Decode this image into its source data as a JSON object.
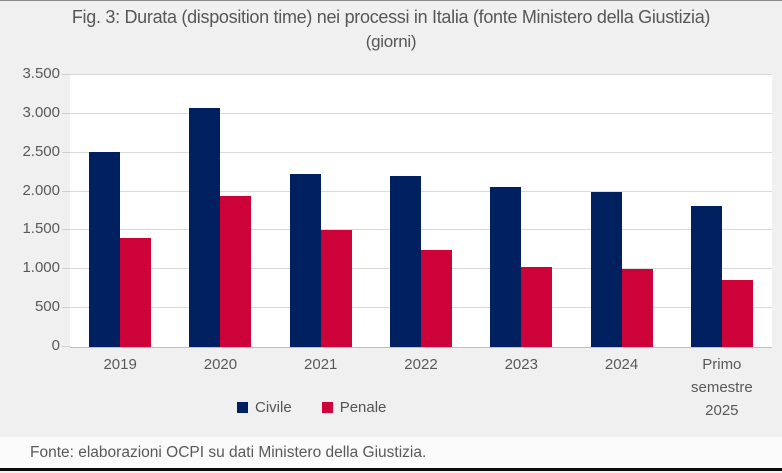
{
  "figure": {
    "title": "Fig. 3: Durata (disposition time) nei processi in Italia (fonte Ministero della Giustizia)",
    "subtitle": "(giorni)",
    "footer": "Fonte: elaborazioni OCPI su dati Ministero della Giustizia."
  },
  "colors": {
    "background": "#f0f0f1",
    "plot_background": "#ffffff",
    "text": "#595959",
    "gridline": "#d9d9d9",
    "axis_line": "#bfbfbf",
    "civile": "#002060",
    "penale": "#cd0239"
  },
  "chart_data": {
    "type": "bar",
    "title": "Fig. 3: Durata (disposition time) nei processi in Italia (fonte Ministero della Giustizia)",
    "unit_label": "(giorni)",
    "categories": [
      "2019",
      "2020",
      "2021",
      "2022",
      "2023",
      "2024",
      "Primo semestre 2025"
    ],
    "series": [
      {
        "name": "Civile",
        "color": "#002060",
        "values": [
          2510,
          3070,
          2220,
          2200,
          2060,
          2000,
          1810
        ]
      },
      {
        "name": "Penale",
        "color": "#cd0239",
        "values": [
          1400,
          1940,
          1500,
          1250,
          1030,
          1000,
          860
        ]
      }
    ],
    "ylim": [
      0,
      3500
    ],
    "yticks": [
      {
        "value": 0,
        "label": "0"
      },
      {
        "value": 500,
        "label": "500"
      },
      {
        "value": 1000,
        "label": "1.000"
      },
      {
        "value": 1500,
        "label": "1.500"
      },
      {
        "value": 2000,
        "label": "2.000"
      },
      {
        "value": 2500,
        "label": "2.500"
      },
      {
        "value": 3000,
        "label": "3.000"
      },
      {
        "value": 3500,
        "label": "3.500"
      }
    ],
    "grid": true,
    "legend_position": "bottom"
  }
}
